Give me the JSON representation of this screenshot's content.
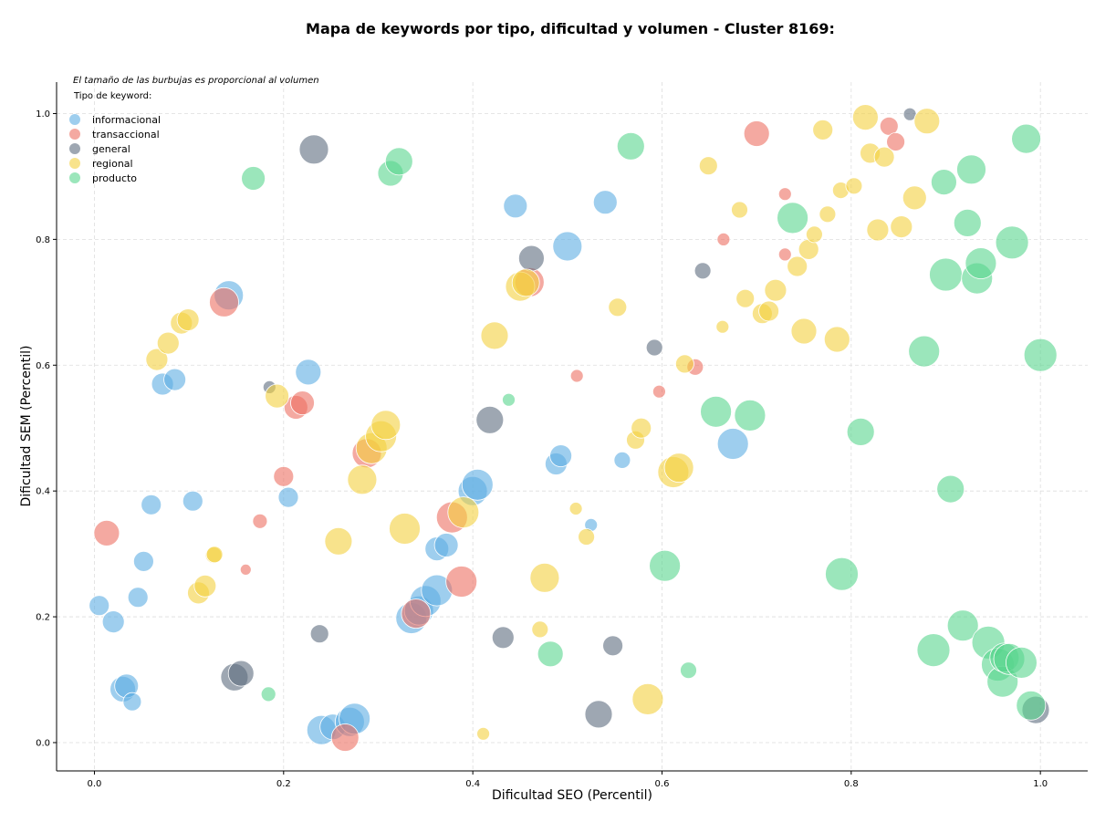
{
  "chart_data": {
    "type": "scatter",
    "title": "Mapa de keywords por tipo, dificultad y volumen - Cluster 8169:",
    "xlabel": "Dificultad SEO (Percentil)",
    "ylabel": "Dificultad SEM (Percentil)",
    "xlim": [
      -0.04,
      1.05
    ],
    "ylim": [
      -0.045,
      1.05
    ],
    "xticks": [
      "0.0",
      "0.2",
      "0.4",
      "0.6",
      "0.8",
      "1.0"
    ],
    "yticks": [
      "0.0",
      "0.2",
      "0.4",
      "0.6",
      "0.8",
      "1.0"
    ],
    "grid": true,
    "note": "El tamaño de las burbujas es proporcional al volumen",
    "legend_title": "Tipo de keyword:",
    "legend_position": "top-left",
    "series": [
      {
        "name": "informacional",
        "color": "#5DADE2",
        "points": [
          [
            0.005,
            0.218,
            11
          ],
          [
            0.02,
            0.192,
            12
          ],
          [
            0.03,
            0.085,
            14
          ],
          [
            0.034,
            0.09,
            13
          ],
          [
            0.04,
            0.065,
            10
          ],
          [
            0.046,
            0.231,
            11
          ],
          [
            0.052,
            0.288,
            11
          ],
          [
            0.06,
            0.378,
            11
          ],
          [
            0.072,
            0.57,
            12
          ],
          [
            0.085,
            0.577,
            12
          ],
          [
            0.104,
            0.384,
            11
          ],
          [
            0.142,
            0.711,
            16
          ],
          [
            0.205,
            0.39,
            11
          ],
          [
            0.226,
            0.589,
            14
          ],
          [
            0.24,
            0.02,
            16
          ],
          [
            0.252,
            0.025,
            14
          ],
          [
            0.27,
            0.033,
            16
          ],
          [
            0.275,
            0.038,
            17
          ],
          [
            0.335,
            0.198,
            17
          ],
          [
            0.343,
            0.21,
            16
          ],
          [
            0.35,
            0.225,
            17
          ],
          [
            0.362,
            0.242,
            17
          ],
          [
            0.362,
            0.308,
            13
          ],
          [
            0.372,
            0.314,
            13
          ],
          [
            0.4,
            0.4,
            16
          ],
          [
            0.405,
            0.41,
            17
          ],
          [
            0.445,
            0.853,
            13
          ],
          [
            0.488,
            0.443,
            12
          ],
          [
            0.493,
            0.456,
            12
          ],
          [
            0.5,
            0.789,
            16
          ],
          [
            0.525,
            0.346,
            7
          ],
          [
            0.54,
            0.859,
            13
          ],
          [
            0.558,
            0.449,
            9
          ],
          [
            0.675,
            0.475,
            17
          ]
        ]
      },
      {
        "name": "transaccional",
        "color": "#EC7063",
        "points": [
          [
            0.013,
            0.333,
            14
          ],
          [
            0.137,
            0.7,
            16
          ],
          [
            0.16,
            0.275,
            6
          ],
          [
            0.175,
            0.352,
            8
          ],
          [
            0.2,
            0.423,
            11
          ],
          [
            0.213,
            0.533,
            13
          ],
          [
            0.22,
            0.54,
            13
          ],
          [
            0.265,
            0.008,
            15
          ],
          [
            0.288,
            0.46,
            16
          ],
          [
            0.34,
            0.205,
            16
          ],
          [
            0.378,
            0.358,
            17
          ],
          [
            0.388,
            0.256,
            17
          ],
          [
            0.46,
            0.732,
            16
          ],
          [
            0.51,
            0.583,
            7
          ],
          [
            0.597,
            0.558,
            7
          ],
          [
            0.635,
            0.597,
            9
          ],
          [
            0.665,
            0.8,
            7
          ],
          [
            0.7,
            0.968,
            14
          ],
          [
            0.73,
            0.872,
            7
          ],
          [
            0.73,
            0.776,
            7
          ],
          [
            0.84,
            0.98,
            10
          ],
          [
            0.847,
            0.955,
            10
          ]
        ]
      },
      {
        "name": "general",
        "color": "#5D6D7E",
        "points": [
          [
            0.148,
            0.104,
            15
          ],
          [
            0.155,
            0.11,
            14
          ],
          [
            0.185,
            0.565,
            7
          ],
          [
            0.232,
            0.943,
            16
          ],
          [
            0.238,
            0.173,
            10
          ],
          [
            0.418,
            0.513,
            15
          ],
          [
            0.432,
            0.167,
            12
          ],
          [
            0.462,
            0.77,
            14
          ],
          [
            0.533,
            0.045,
            15
          ],
          [
            0.548,
            0.154,
            11
          ],
          [
            0.592,
            0.628,
            9
          ],
          [
            0.643,
            0.75,
            9
          ],
          [
            0.862,
            0.999,
            7
          ],
          [
            0.995,
            0.052,
            15
          ]
        ]
      },
      {
        "name": "regional",
        "color": "#F4D03F",
        "points": [
          [
            0.066,
            0.609,
            12
          ],
          [
            0.078,
            0.635,
            12
          ],
          [
            0.092,
            0.667,
            12
          ],
          [
            0.099,
            0.672,
            12
          ],
          [
            0.11,
            0.238,
            12
          ],
          [
            0.117,
            0.249,
            12
          ],
          [
            0.126,
            0.298,
            9
          ],
          [
            0.127,
            0.299,
            9
          ],
          [
            0.193,
            0.551,
            13
          ],
          [
            0.258,
            0.32,
            15
          ],
          [
            0.283,
            0.418,
            16
          ],
          [
            0.293,
            0.468,
            17
          ],
          [
            0.303,
            0.487,
            17
          ],
          [
            0.308,
            0.505,
            16
          ],
          [
            0.328,
            0.34,
            17
          ],
          [
            0.39,
            0.366,
            17
          ],
          [
            0.411,
            0.014,
            7
          ],
          [
            0.423,
            0.647,
            15
          ],
          [
            0.45,
            0.725,
            16
          ],
          [
            0.456,
            0.731,
            15
          ],
          [
            0.471,
            0.18,
            9
          ],
          [
            0.476,
            0.262,
            16
          ],
          [
            0.509,
            0.372,
            7
          ],
          [
            0.52,
            0.327,
            9
          ],
          [
            0.553,
            0.692,
            10
          ],
          [
            0.572,
            0.481,
            10
          ],
          [
            0.578,
            0.5,
            11
          ],
          [
            0.585,
            0.069,
            17
          ],
          [
            0.612,
            0.43,
            17
          ],
          [
            0.618,
            0.437,
            16
          ],
          [
            0.624,
            0.602,
            10
          ],
          [
            0.649,
            0.917,
            10
          ],
          [
            0.664,
            0.661,
            7
          ],
          [
            0.682,
            0.847,
            9
          ],
          [
            0.688,
            0.706,
            10
          ],
          [
            0.706,
            0.682,
            11
          ],
          [
            0.713,
            0.686,
            11
          ],
          [
            0.72,
            0.719,
            12
          ],
          [
            0.743,
            0.757,
            11
          ],
          [
            0.75,
            0.654,
            14
          ],
          [
            0.755,
            0.784,
            11
          ],
          [
            0.761,
            0.808,
            9
          ],
          [
            0.77,
            0.974,
            11
          ],
          [
            0.775,
            0.84,
            9
          ],
          [
            0.785,
            0.641,
            14
          ],
          [
            0.789,
            0.878,
            9
          ],
          [
            0.803,
            0.885,
            9
          ],
          [
            0.815,
            0.994,
            14
          ],
          [
            0.82,
            0.937,
            11
          ],
          [
            0.828,
            0.815,
            12
          ],
          [
            0.835,
            0.931,
            11
          ],
          [
            0.853,
            0.82,
            12
          ],
          [
            0.867,
            0.866,
            13
          ],
          [
            0.88,
            0.988,
            14
          ]
        ]
      },
      {
        "name": "producto",
        "color": "#58D68D",
        "points": [
          [
            0.168,
            0.897,
            13
          ],
          [
            0.184,
            0.077,
            8
          ],
          [
            0.313,
            0.905,
            14
          ],
          [
            0.322,
            0.924,
            15
          ],
          [
            0.438,
            0.545,
            7
          ],
          [
            0.482,
            0.141,
            14
          ],
          [
            0.567,
            0.948,
            15
          ],
          [
            0.603,
            0.281,
            17
          ],
          [
            0.628,
            0.115,
            9
          ],
          [
            0.657,
            0.526,
            17
          ],
          [
            0.693,
            0.52,
            17
          ],
          [
            0.738,
            0.834,
            17
          ],
          [
            0.79,
            0.268,
            18
          ],
          [
            0.81,
            0.494,
            15
          ],
          [
            0.877,
            0.622,
            17
          ],
          [
            0.887,
            0.147,
            18
          ],
          [
            0.898,
            0.891,
            14
          ],
          [
            0.9,
            0.744,
            18
          ],
          [
            0.905,
            0.403,
            15
          ],
          [
            0.918,
            0.186,
            17
          ],
          [
            0.923,
            0.826,
            15
          ],
          [
            0.927,
            0.911,
            16
          ],
          [
            0.933,
            0.738,
            17
          ],
          [
            0.937,
            0.762,
            17
          ],
          [
            0.945,
            0.159,
            18
          ],
          [
            0.955,
            0.124,
            18
          ],
          [
            0.96,
            0.097,
            17
          ],
          [
            0.962,
            0.135,
            16
          ],
          [
            0.967,
            0.133,
            17
          ],
          [
            0.97,
            0.795,
            18
          ],
          [
            0.98,
            0.127,
            17
          ],
          [
            0.985,
            0.96,
            16
          ],
          [
            0.99,
            0.059,
            16
          ],
          [
            1.0,
            0.616,
            18
          ]
        ]
      }
    ]
  }
}
